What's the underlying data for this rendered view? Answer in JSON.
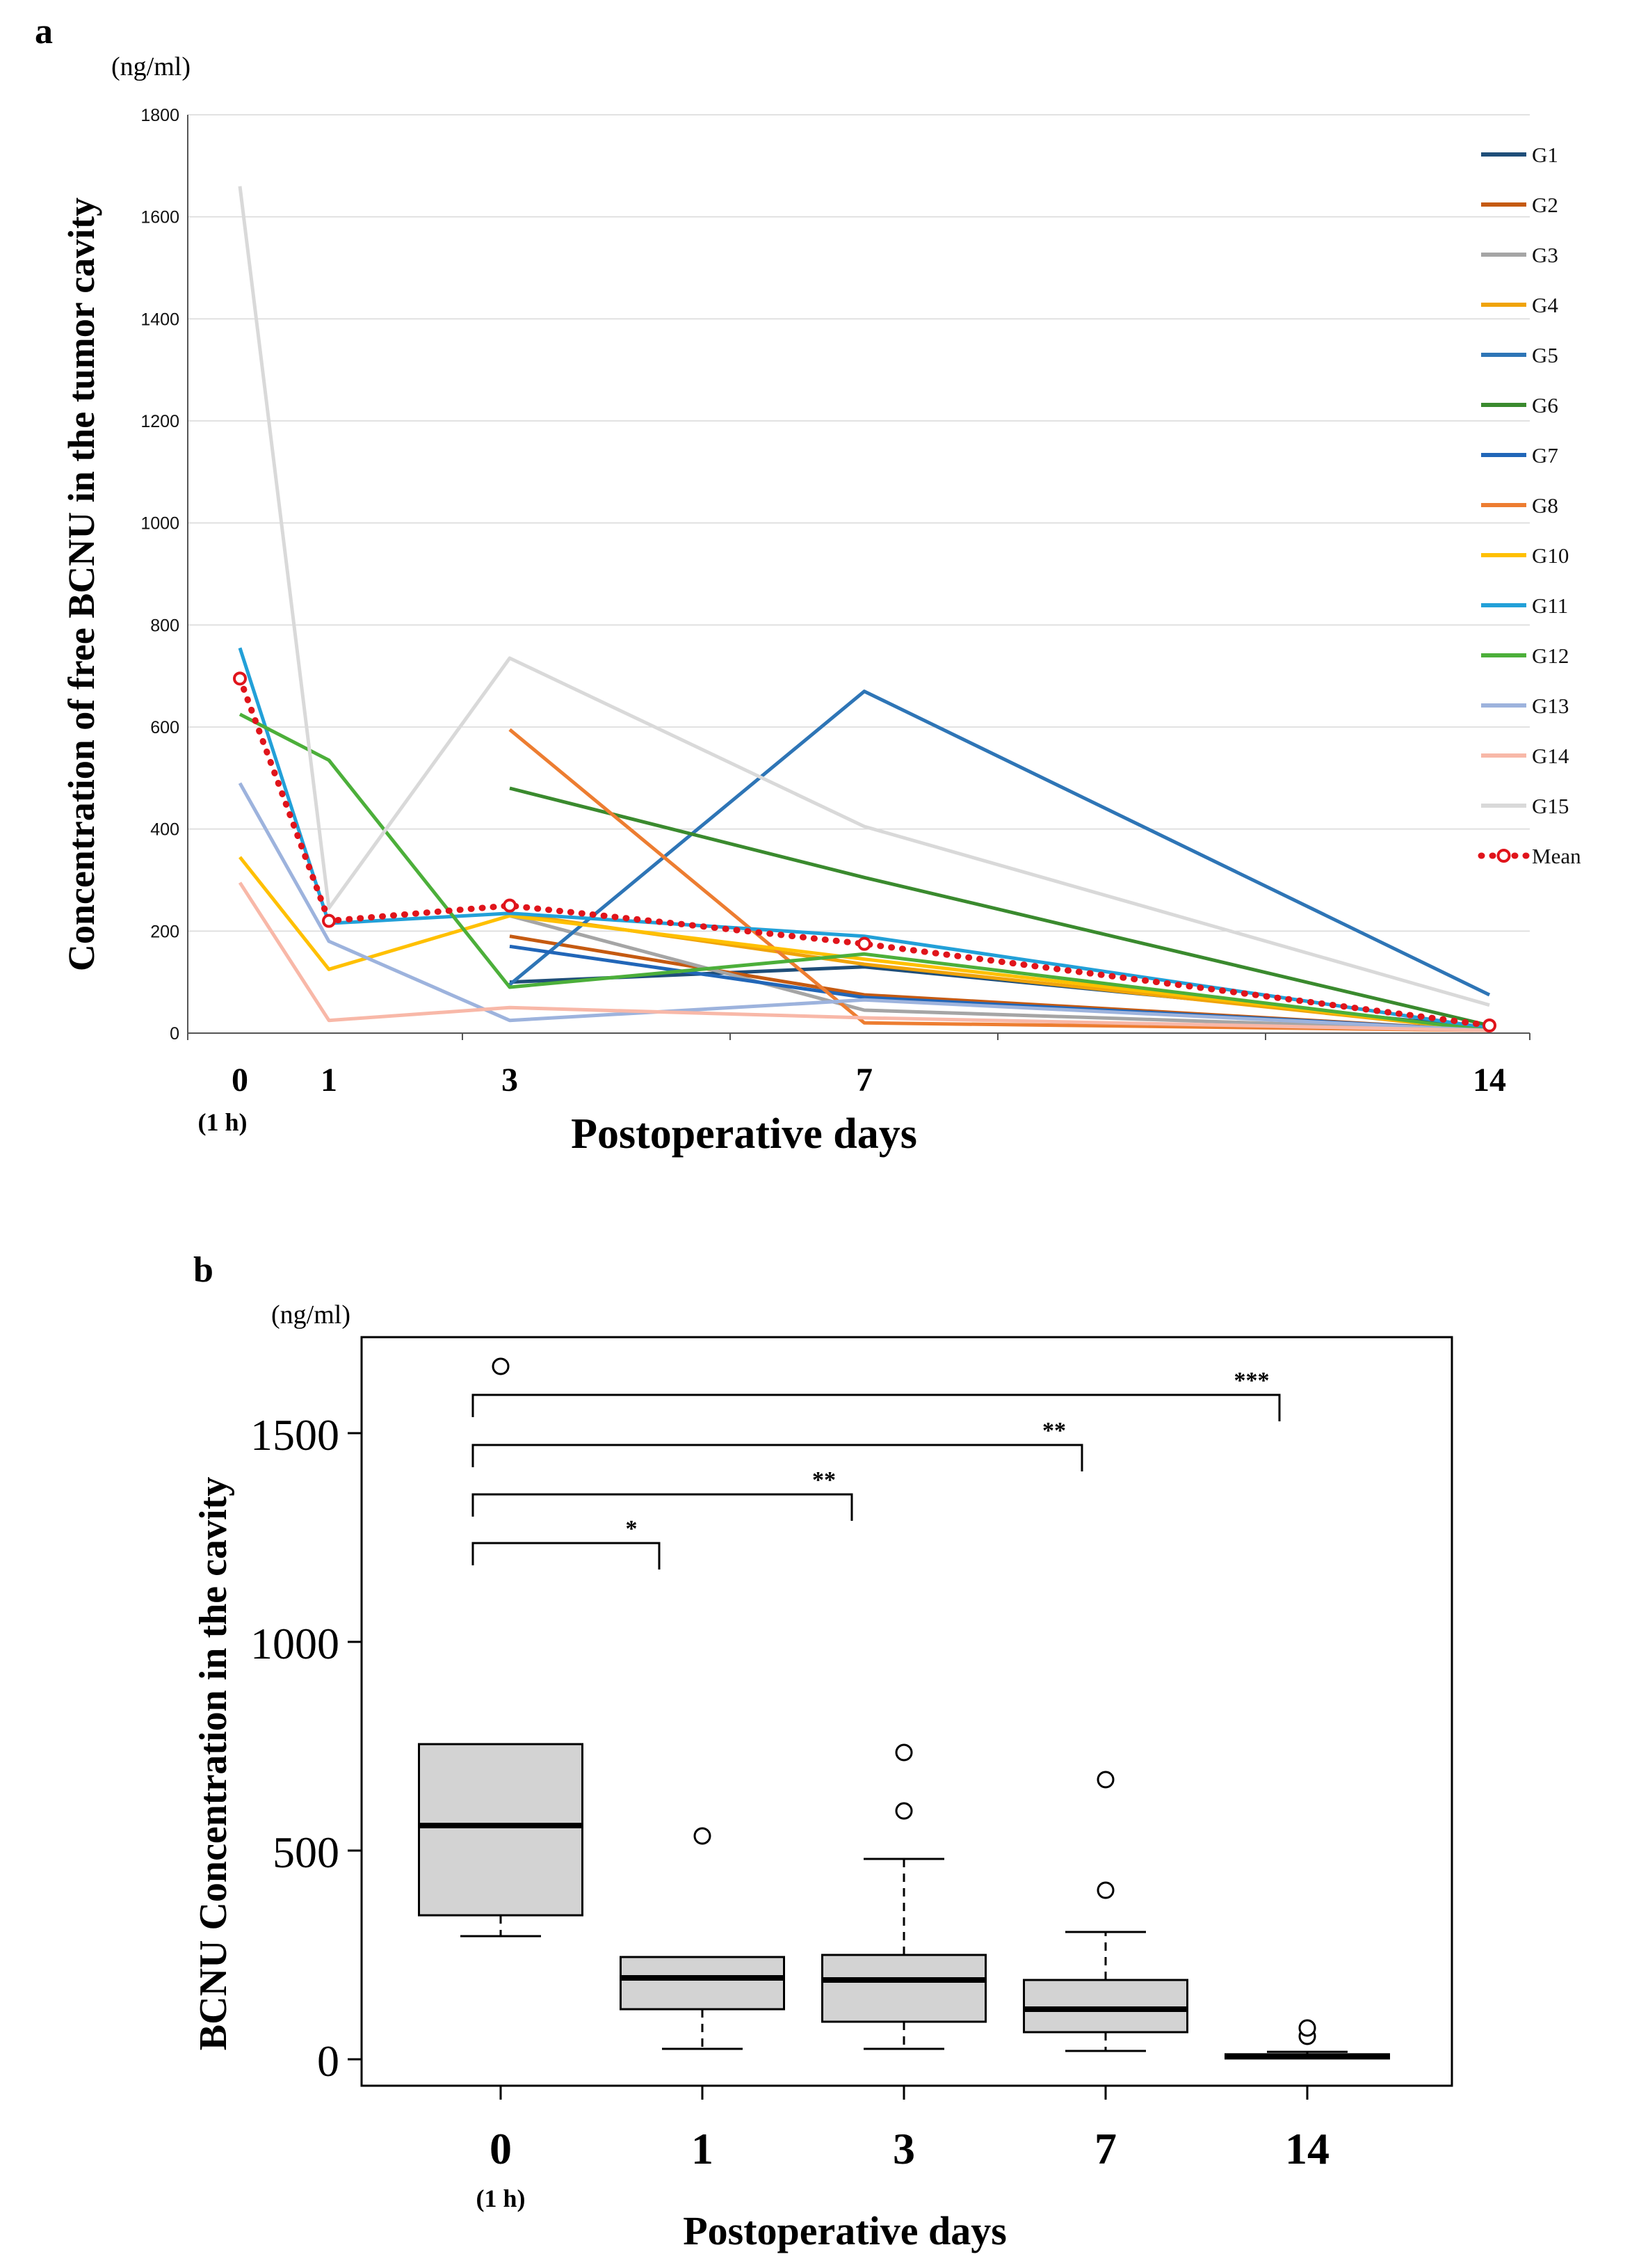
{
  "chart_data": [
    {
      "panel": "a",
      "type": "line",
      "title": "",
      "unit": "(ng/ml)",
      "ylabel": "Concentration of free BCNU in the tumor cavity",
      "xlabel": "Postoperative days",
      "xlim": [
        0,
        14
      ],
      "ylim": [
        0,
        1800
      ],
      "yticks": [
        "0",
        "200",
        "400",
        "600",
        "800",
        "1000",
        "1200",
        "1400",
        "1600",
        "1800"
      ],
      "xtick_labels": [
        "0",
        "1",
        "3",
        "7",
        "14"
      ],
      "xtick_values": [
        0,
        1,
        3,
        7,
        14
      ],
      "xtick_sublabel": "(1 h)",
      "grid": true,
      "legend_position": "right",
      "series": [
        {
          "name": "G1",
          "color": "#1F4E79",
          "x": [
            3,
            7,
            14
          ],
          "y": [
            100,
            130,
            10
          ]
        },
        {
          "name": "G2",
          "color": "#C55A11",
          "x": [
            3,
            7,
            14
          ],
          "y": [
            190,
            75,
            5
          ]
        },
        {
          "name": "G3",
          "color": "#A5A5A5",
          "x": [
            3,
            7,
            14
          ],
          "y": [
            230,
            45,
            5
          ]
        },
        {
          "name": "G4",
          "color": "#F0A30A",
          "x": [
            3,
            7,
            14
          ],
          "y": [
            235,
            135,
            5
          ]
        },
        {
          "name": "G5",
          "color": "#2E75B6",
          "x": [
            3,
            7,
            14
          ],
          "y": [
            95,
            670,
            75
          ]
        },
        {
          "name": "G6",
          "color": "#3A8A2E",
          "x": [
            3,
            7,
            14
          ],
          "y": [
            480,
            305,
            15
          ]
        },
        {
          "name": "G7",
          "color": "#2166B8",
          "x": [
            3,
            7,
            14
          ],
          "y": [
            170,
            70,
            5
          ]
        },
        {
          "name": "G8",
          "color": "#ED7D31",
          "x": [
            3,
            7,
            14
          ],
          "y": [
            595,
            20,
            5
          ]
        },
        {
          "name": "G10",
          "color": "#FFC000",
          "x": [
            0,
            1,
            3,
            7,
            14
          ],
          "y": [
            345,
            125,
            230,
            145,
            5
          ]
        },
        {
          "name": "G11",
          "color": "#22A0D8",
          "x": [
            0,
            1,
            3,
            7,
            14
          ],
          "y": [
            755,
            215,
            235,
            190,
            10
          ]
        },
        {
          "name": "G12",
          "color": "#4CAF3A",
          "x": [
            0,
            1,
            3,
            7,
            14
          ],
          "y": [
            625,
            535,
            90,
            155,
            5
          ]
        },
        {
          "name": "G13",
          "color": "#9DB3DD",
          "x": [
            0,
            1,
            3,
            7,
            14
          ],
          "y": [
            490,
            180,
            25,
            65,
            5
          ]
        },
        {
          "name": "G14",
          "color": "#F8B8A8",
          "x": [
            0,
            1,
            3,
            7,
            14
          ],
          "y": [
            295,
            25,
            50,
            30,
            5
          ]
        },
        {
          "name": "G15",
          "color": "#D9D9D9",
          "x": [
            0,
            1,
            3,
            7,
            14
          ],
          "y": [
            1660,
            245,
            735,
            405,
            55
          ]
        },
        {
          "name": "Mean",
          "color": "#E0141B",
          "style": "dotted-markers",
          "x": [
            0,
            1,
            3,
            7,
            14
          ],
          "y": [
            695,
            220,
            250,
            175,
            15
          ]
        }
      ]
    },
    {
      "panel": "b",
      "type": "box",
      "unit": "(ng/ml)",
      "ylabel": "BCNU Concentration in the cavity",
      "xlabel": "Postoperative days",
      "ylim": [
        -60,
        1700
      ],
      "yticks": [
        "0",
        "500",
        "1000",
        "1500"
      ],
      "categories": [
        "0",
        "1",
        "3",
        "7",
        "14"
      ],
      "xtick_sublabel": "(1 h)",
      "boxes": [
        {
          "category": "0",
          "min": 295,
          "q1": 345,
          "median": 560,
          "q3": 755,
          "max": 755,
          "outliers": [
            1660
          ]
        },
        {
          "category": "1",
          "min": 25,
          "q1": 120,
          "median": 195,
          "q3": 245,
          "max": 245,
          "outliers": [
            535
          ]
        },
        {
          "category": "3",
          "min": 25,
          "q1": 90,
          "median": 190,
          "q3": 250,
          "max": 480,
          "outliers": [
            595,
            735
          ]
        },
        {
          "category": "7",
          "min": 20,
          "q1": 65,
          "median": 120,
          "q3": 190,
          "max": 305,
          "outliers": [
            405,
            670
          ]
        },
        {
          "category": "14",
          "min": 5,
          "q1": 5,
          "median": 7,
          "q3": 12,
          "max": 18,
          "outliers": [
            55,
            75
          ]
        }
      ],
      "significance": [
        {
          "from": "0",
          "to": "1",
          "label": "*"
        },
        {
          "from": "0",
          "to": "3",
          "label": "**"
        },
        {
          "from": "0",
          "to": "7",
          "label": "**"
        },
        {
          "from": "0",
          "to": "14",
          "label": "***"
        }
      ]
    }
  ],
  "panel_labels": {
    "a": "a",
    "b": "b"
  }
}
